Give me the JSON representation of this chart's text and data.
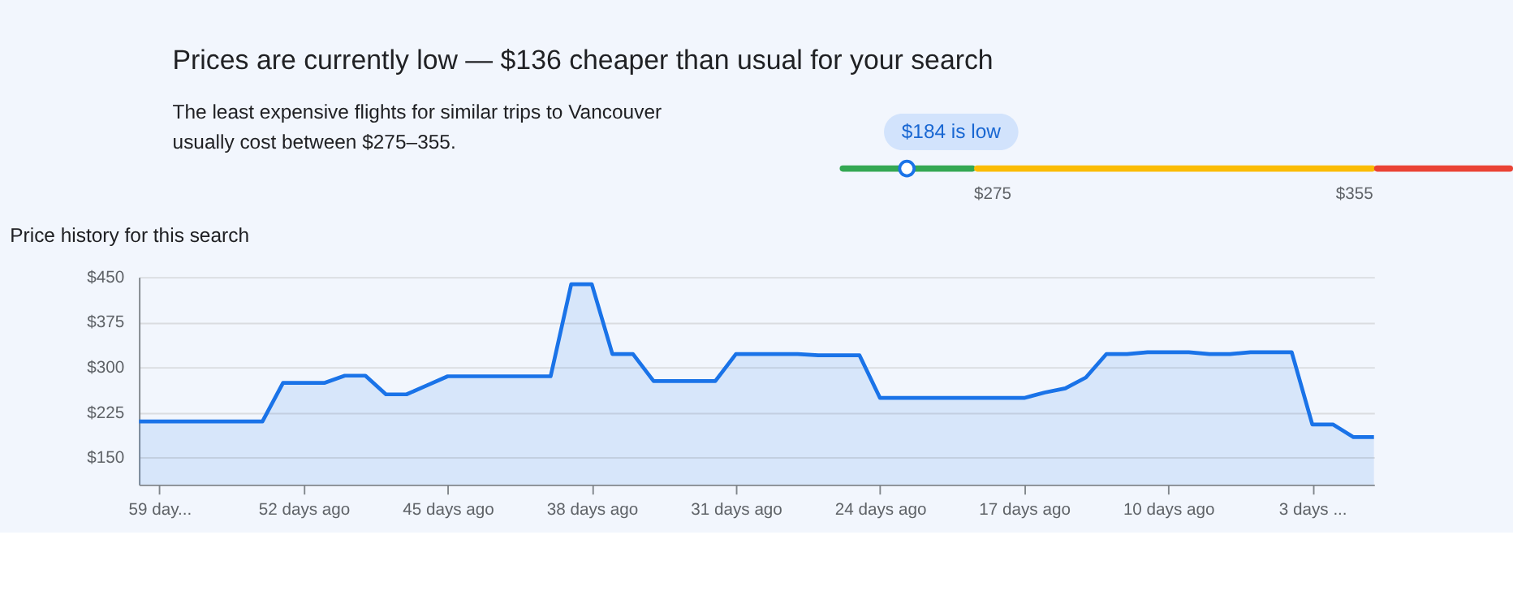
{
  "chart_data": [
    {
      "type": "other",
      "title": "Prices are currently low — $136 cheaper than usual for your search",
      "annotations": [
        "The least expensive flights for similar trips to Vancouver",
        "usually cost between $275–355.",
        "$184 is low",
        "$275",
        "$355"
      ],
      "colors": [
        "#34a853",
        "#fbbc04",
        "#ea4335"
      ]
    },
    {
      "type": "area",
      "title": "Price history for this search",
      "x": [
        60,
        54,
        53,
        51,
        50,
        49,
        48,
        47,
        46,
        45,
        40,
        39,
        38,
        37,
        36,
        35,
        32,
        31,
        28,
        27,
        25,
        24,
        17,
        16,
        15,
        14,
        13,
        12,
        11,
        9,
        8,
        7,
        6,
        4,
        3,
        2,
        1,
        0
      ],
      "series": [
        {
          "color": "#1a73e8",
          "values": [
            210,
            210,
            274,
            274,
            286,
            286,
            255,
            255,
            270,
            285,
            285,
            438,
            438,
            322,
            322,
            277,
            277,
            322,
            322,
            320,
            320,
            249,
            249,
            258,
            265,
            283,
            322,
            322,
            325,
            325,
            322,
            322,
            325,
            325,
            205,
            205,
            184,
            184
          ]
        }
      ],
      "xlim": [
        60,
        0
      ],
      "xticks": [
        {
          "value": 59,
          "label": "59 day..."
        },
        {
          "value": 52,
          "label": "52 days ago"
        },
        {
          "value": 45,
          "label": "45 days ago"
        },
        {
          "value": 38,
          "label": "38 days ago"
        },
        {
          "value": 31,
          "label": "31 days ago"
        },
        {
          "value": 24,
          "label": "24 days ago"
        },
        {
          "value": 17,
          "label": "17 days ago"
        },
        {
          "value": 10,
          "label": "10 days ago"
        },
        {
          "value": 3,
          "label": "3 days ..."
        }
      ],
      "ylim": [
        105,
        450
      ],
      "yticks": [
        {
          "value": 150,
          "label": "$150"
        },
        {
          "value": 225,
          "label": "$225"
        },
        {
          "value": 300,
          "label": "$300"
        },
        {
          "value": 375,
          "label": "$375"
        },
        {
          "value": 450,
          "label": "$450"
        }
      ],
      "grid": "y"
    }
  ]
}
